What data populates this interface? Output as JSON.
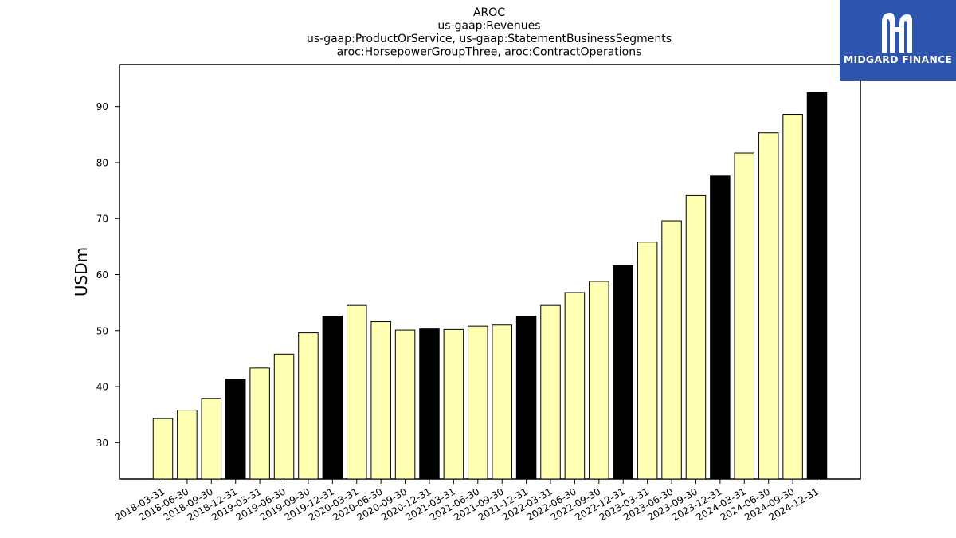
{
  "chart_data": {
    "type": "bar",
    "title_lines": [
      "AROC",
      "us-gaap:Revenues",
      "us-gaap:ProductOrService, us-gaap:StatementBusinessSegments",
      "aroc:HorsepowerGroupThree, aroc:ContractOperations"
    ],
    "ylabel": "USDm",
    "xlabel": "",
    "ylim": [
      23.5,
      97.5
    ],
    "yticks": [
      30,
      40,
      50,
      60,
      70,
      80,
      90
    ],
    "grid": false,
    "categories": [
      "2018-03-31",
      "2018-06-30",
      "2018-09-30",
      "2018-12-31",
      "2019-03-31",
      "2019-06-30",
      "2019-09-30",
      "2019-12-31",
      "2020-03-31",
      "2020-06-30",
      "2020-09-30",
      "2020-12-31",
      "2021-03-31",
      "2021-06-30",
      "2021-09-30",
      "2021-12-31",
      "2022-03-31",
      "2022-06-30",
      "2022-09-30",
      "2022-12-31",
      "2023-03-31",
      "2023-06-30",
      "2023-09-30",
      "2023-12-31",
      "2024-03-31",
      "2024-06-30",
      "2024-09-30",
      "2024-12-31"
    ],
    "values": [
      34.3,
      35.8,
      37.9,
      41.3,
      43.3,
      45.8,
      49.6,
      52.6,
      54.5,
      51.6,
      50.1,
      50.3,
      50.2,
      50.8,
      51.0,
      52.6,
      54.5,
      56.8,
      58.8,
      61.6,
      65.8,
      69.6,
      74.1,
      77.6,
      81.7,
      85.3,
      88.6,
      92.5
    ],
    "bar_colors": {
      "quarter": "#ffffb3",
      "year_end": "#000000",
      "edge": "#000000"
    }
  },
  "logo": {
    "text": "MIDGARD FINANCE",
    "background": "#2e55ae",
    "foreground": "#ffffff"
  }
}
